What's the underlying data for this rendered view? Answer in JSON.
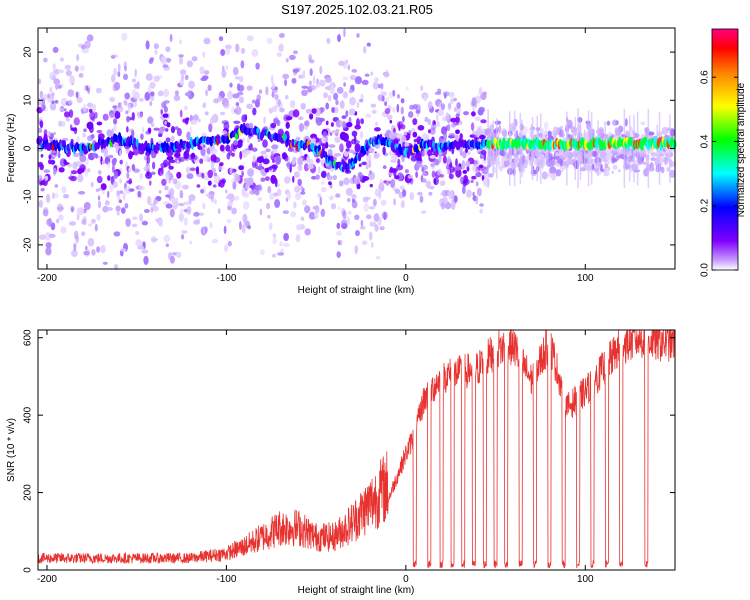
{
  "title": "S197.2025.102.03.21.R05",
  "chart_data": [
    {
      "type": "heatmap",
      "name": "spectrogram",
      "xlabel": "Height of straight line (km)",
      "ylabel": "Frequency (Hz)",
      "xlim": [
        -205,
        150
      ],
      "ylim": [
        -25,
        25
      ],
      "xticks": [
        -200,
        -100,
        0,
        100
      ],
      "yticks": [
        -20,
        -10,
        0,
        10,
        20
      ],
      "colorbar": {
        "label": "Normalized spectral amplitude",
        "range": [
          0,
          0.75
        ],
        "ticks": [
          0.0,
          0.2,
          0.4,
          0.6
        ],
        "tick_labels": [
          "0.0",
          "0.2",
          "0.4",
          "0.6"
        ],
        "colormap": [
          "#ffffff",
          "#8000ff",
          "#0000ff",
          "#00ffff",
          "#00ff00",
          "#ffff00",
          "#ff8000",
          "#ff0000",
          "#ff0080"
        ]
      },
      "ridge": {
        "x": [
          -205,
          -180,
          -160,
          -140,
          -120,
          -100,
          -90,
          -80,
          -70,
          -60,
          -50,
          -40,
          -35,
          -30,
          -25,
          -20,
          -15,
          -10,
          -5,
          0,
          10,
          20,
          30,
          40,
          45,
          60,
          80,
          100,
          120,
          150
        ],
        "y": [
          1,
          0,
          2,
          0,
          1,
          2,
          4,
          3,
          2,
          1,
          0,
          -3,
          -4,
          -3,
          -1,
          1,
          2,
          1,
          0,
          -1,
          1,
          0,
          1,
          1,
          1,
          1,
          1,
          1,
          1,
          1
        ]
      }
    },
    {
      "type": "line",
      "name": "snr",
      "xlabel": "Height of straight line (km)",
      "ylabel": "SNR (10 * v/v)",
      "xlim": [
        -205,
        150
      ],
      "ylim": [
        0,
        620
      ],
      "xticks": [
        -200,
        -100,
        0,
        100
      ],
      "yticks": [
        0,
        200,
        400,
        600
      ],
      "color": "#e8322f",
      "envelope": {
        "x": [
          -205,
          -120,
          -100,
          -90,
          -80,
          -70,
          -60,
          -50,
          -40,
          -30,
          -20,
          -10,
          0,
          5,
          10,
          20,
          30,
          40,
          50,
          60,
          70,
          80,
          90,
          100,
          110,
          120,
          130,
          140,
          150
        ],
        "y": [
          25,
          25,
          35,
          50,
          70,
          90,
          90,
          70,
          70,
          100,
          140,
          180,
          300,
          350,
          440,
          500,
          510,
          520,
          570,
          580,
          490,
          590,
          420,
          460,
          520,
          580,
          600,
          590,
          590
        ]
      },
      "dropouts": [
        5,
        13,
        20,
        26,
        32,
        38,
        44,
        50,
        56,
        64,
        72,
        80,
        88,
        96,
        104,
        112,
        120,
        134
      ]
    }
  ]
}
